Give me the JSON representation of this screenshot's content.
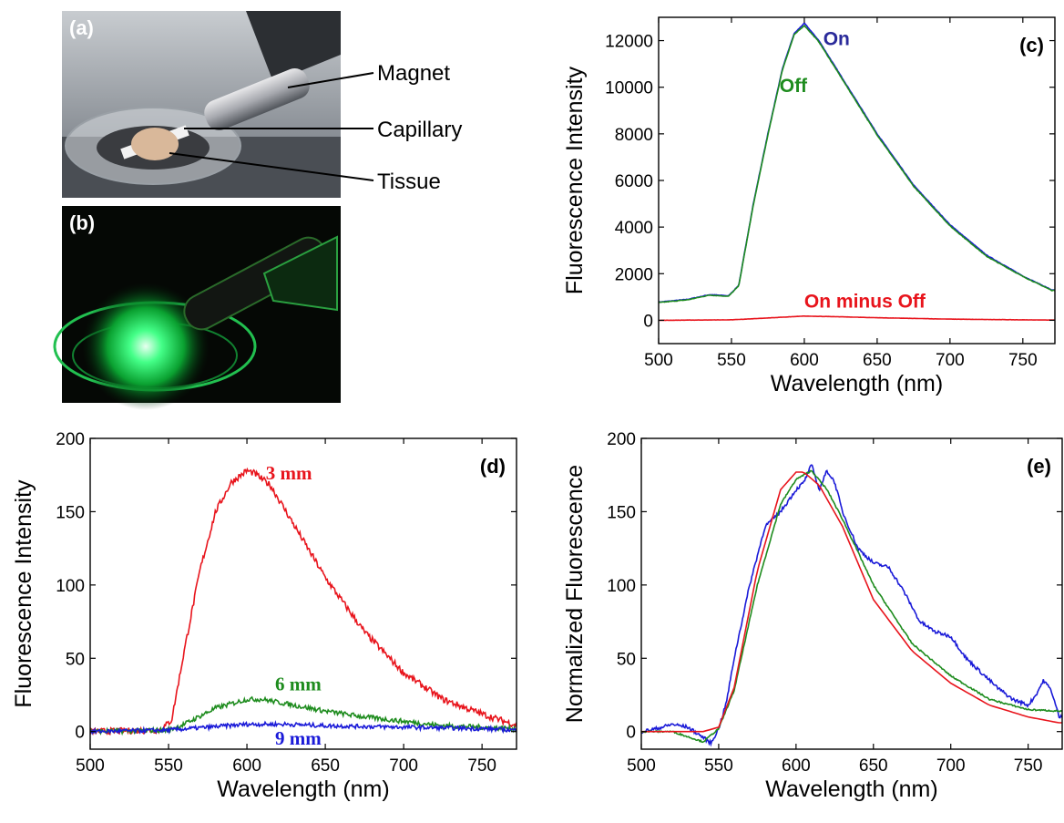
{
  "colors": {
    "red": "#e8141c",
    "green": "#1e8c1e",
    "blue": "#1a1ad8",
    "darkblue": "#2a2a9a"
  },
  "photos": {
    "a": {
      "label": "(a)",
      "callouts": [
        "Magnet",
        "Capillary",
        "Tissue"
      ]
    },
    "b": {
      "label": "(b)"
    }
  },
  "chart_data": [
    {
      "id": "c",
      "type": "line",
      "panel_label": "(c)",
      "xlabel": "Wavelength (nm)",
      "ylabel": "Fluorescence Intensity",
      "xlim": [
        500,
        772
      ],
      "ylim": [
        -1000,
        13000
      ],
      "xticks": [
        500,
        550,
        600,
        650,
        700,
        750
      ],
      "yticks": [
        0,
        2000,
        4000,
        6000,
        8000,
        10000,
        12000
      ],
      "series": [
        {
          "name": "On",
          "color": "#1a1ad8",
          "x": [
            500,
            520,
            535,
            548,
            555,
            565,
            575,
            585,
            593,
            600,
            610,
            625,
            650,
            675,
            700,
            725,
            750,
            770
          ],
          "y": [
            780,
            900,
            1100,
            1050,
            1500,
            5000,
            8000,
            10800,
            12300,
            12750,
            12000,
            10500,
            8000,
            5800,
            4100,
            2800,
            1900,
            1300
          ]
        },
        {
          "name": "Off",
          "color": "#1e8c1e",
          "x": [
            500,
            520,
            535,
            548,
            555,
            565,
            575,
            585,
            593,
            600,
            610,
            625,
            650,
            675,
            700,
            725,
            750,
            770
          ],
          "y": [
            760,
            880,
            1080,
            1030,
            1480,
            4950,
            7950,
            10750,
            12250,
            12650,
            11950,
            10450,
            7950,
            5750,
            4050,
            2750,
            1880,
            1280
          ]
        },
        {
          "name": "On minus Off",
          "color": "#e8141c",
          "x": [
            500,
            550,
            575,
            600,
            625,
            650,
            700,
            750,
            770
          ],
          "y": [
            0,
            20,
            100,
            180,
            150,
            110,
            50,
            20,
            10
          ]
        }
      ],
      "annotations": [
        {
          "text": "On",
          "x": 613,
          "y": 11800,
          "color": "#2a2a9a"
        },
        {
          "text": "Off",
          "x": 583,
          "y": 9800,
          "color": "#1e8c1e"
        },
        {
          "text": "On minus Off",
          "x": 600,
          "y": 550,
          "color": "#e8141c"
        }
      ]
    },
    {
      "id": "d",
      "type": "line",
      "panel_label": "(d)",
      "xlabel": "Wavelength (nm)",
      "ylabel": "Fluorescence Intensity",
      "xlim": [
        500,
        772
      ],
      "ylim": [
        -12,
        200
      ],
      "xticks": [
        500,
        550,
        600,
        650,
        700,
        750
      ],
      "yticks": [
        0,
        50,
        100,
        150,
        200
      ],
      "series": [
        {
          "name": "3 mm",
          "color": "#e8141c",
          "x": [
            500,
            545,
            552,
            560,
            570,
            580,
            590,
            600,
            605,
            615,
            625,
            650,
            675,
            700,
            725,
            750,
            770
          ],
          "y": [
            0,
            1,
            8,
            55,
            110,
            150,
            170,
            178,
            176,
            168,
            150,
            105,
            68,
            40,
            22,
            12,
            5
          ]
        },
        {
          "name": "6 mm",
          "color": "#1e8c1e",
          "x": [
            500,
            550,
            560,
            580,
            600,
            610,
            625,
            650,
            675,
            700,
            725,
            750,
            770
          ],
          "y": [
            0,
            1,
            5,
            16,
            22,
            22,
            19,
            14,
            10,
            7,
            4,
            3,
            2
          ]
        },
        {
          "name": "9 mm",
          "color": "#1a1ad8",
          "x": [
            500,
            550,
            575,
            600,
            625,
            650,
            700,
            750,
            770
          ],
          "y": [
            0,
            1,
            3,
            5,
            5,
            4,
            3,
            2,
            1
          ]
        }
      ],
      "annotations": [
        {
          "text": "3 mm",
          "x": 612,
          "y": 172,
          "color": "#e8141c"
        },
        {
          "text": "6 mm",
          "x": 618,
          "y": 28,
          "color": "#1e8c1e"
        },
        {
          "text": "9 mm",
          "x": 618,
          "y": -9,
          "color": "#1a1ad8"
        }
      ]
    },
    {
      "id": "e",
      "type": "line",
      "panel_label": "(e)",
      "xlabel": "Wavelength (nm)",
      "ylabel": "Normalized Fluorescence",
      "xlim": [
        500,
        772
      ],
      "ylim": [
        -12,
        200
      ],
      "xticks": [
        500,
        550,
        600,
        650,
        700,
        750
      ],
      "yticks": [
        0,
        50,
        100,
        150,
        200
      ],
      "series": [
        {
          "name": "",
          "color": "#1a1ad8",
          "x": [
            500,
            510,
            520,
            530,
            540,
            545,
            550,
            555,
            560,
            570,
            580,
            590,
            600,
            605,
            610,
            615,
            620,
            625,
            630,
            640,
            650,
            660,
            670,
            680,
            690,
            700,
            710,
            720,
            730,
            740,
            750,
            755,
            760,
            765,
            770
          ],
          "y": [
            0,
            2,
            5,
            3,
            -4,
            -8,
            2,
            20,
            50,
            100,
            140,
            150,
            165,
            170,
            182,
            165,
            178,
            170,
            150,
            125,
            115,
            112,
            95,
            75,
            68,
            65,
            50,
            40,
            30,
            22,
            18,
            25,
            35,
            28,
            10
          ]
        },
        {
          "name": "",
          "color": "#1e8c1e",
          "x": [
            500,
            520,
            540,
            550,
            560,
            575,
            590,
            600,
            610,
            620,
            630,
            650,
            675,
            700,
            725,
            750,
            770
          ],
          "y": [
            0,
            0,
            -7,
            2,
            28,
            100,
            155,
            172,
            178,
            165,
            145,
            100,
            60,
            38,
            22,
            15,
            14
          ]
        },
        {
          "name": "",
          "color": "#e8141c",
          "x": [
            500,
            520,
            540,
            550,
            560,
            575,
            590,
            600,
            605,
            615,
            630,
            650,
            675,
            700,
            725,
            750,
            770
          ],
          "y": [
            0,
            0,
            0,
            3,
            30,
            110,
            165,
            177,
            177,
            168,
            140,
            90,
            55,
            33,
            18,
            10,
            6
          ]
        }
      ]
    }
  ]
}
